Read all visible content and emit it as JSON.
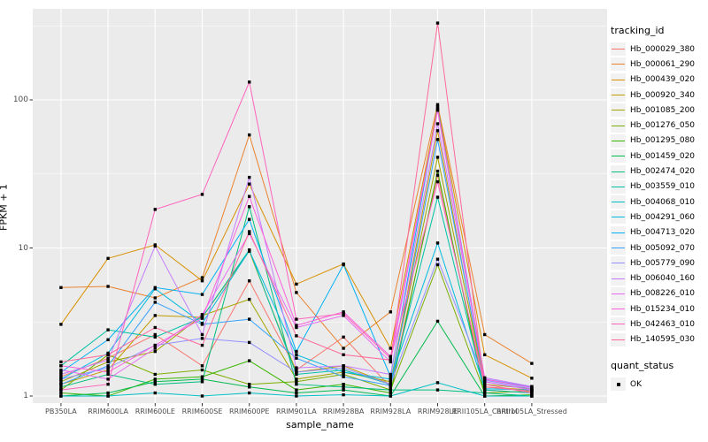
{
  "chart_data": {
    "type": "line",
    "xlabel": "sample_name",
    "ylabel": "FPKM + 1",
    "y_scale": "log10",
    "y_ticks": [
      1,
      10,
      100
    ],
    "y_minor_ticks_log": [
      0.5,
      1.5,
      2.5
    ],
    "grid": true,
    "legend_position": "right",
    "panel_bg": "#EBEBEB",
    "grid_color": "#FFFFFF",
    "tick_label_color": "#4D4D4D",
    "point_color": "#000000",
    "legend_key_bg": "#F2F2F2",
    "categories": [
      "PB350LA",
      "RRIM600LA",
      "RRIM600LE",
      "RRIM600SE",
      "RRIM600PE",
      "RRIM901LA",
      "RRIM928BA",
      "RRIM928LA",
      "RRIM928LE",
      "RRII105LA_Control",
      "RRII105LA_Stressed"
    ],
    "series": [
      {
        "name": "Hb_000029_380",
        "color": "#F8766D",
        "values": [
          1.35,
          1.8,
          2.6,
          1.6,
          6.0,
          1.5,
          2.5,
          1.15,
          31,
          1.1,
          1.05
        ]
      },
      {
        "name": "Hb_000061_290",
        "color": "#EA8331",
        "values": [
          5.4,
          5.5,
          4.6,
          6.3,
          58,
          5.0,
          2.1,
          3.7,
          93,
          2.6,
          1.66
        ]
      },
      {
        "name": "Hb_000439_020",
        "color": "#D89000",
        "values": [
          3.05,
          8.5,
          10.5,
          6.0,
          27,
          5.7,
          7.8,
          2.1,
          90,
          1.9,
          1.32
        ]
      },
      {
        "name": "Hb_000920_340",
        "color": "#C09B00",
        "values": [
          1.2,
          1.5,
          3.5,
          3.4,
          9.5,
          1.45,
          1.6,
          1.2,
          62,
          1.15,
          1.1
        ]
      },
      {
        "name": "Hb_001085_200",
        "color": "#A3A500",
        "values": [
          1.25,
          1.7,
          2.0,
          3.5,
          4.5,
          1.3,
          1.45,
          1.25,
          41,
          1.2,
          1.12
        ]
      },
      {
        "name": "Hb_001276_050",
        "color": "#7CAE00",
        "values": [
          1.1,
          1.9,
          1.4,
          1.5,
          1.2,
          1.25,
          1.4,
          1.1,
          7.7,
          1.05,
          1.08
        ]
      },
      {
        "name": "Hb_001295_080",
        "color": "#39B600",
        "values": [
          1.05,
          1.0,
          1.3,
          1.35,
          1.73,
          1.1,
          1.2,
          1.05,
          33,
          1.0,
          1.02
        ]
      },
      {
        "name": "Hb_001459_020",
        "color": "#00BB4E",
        "values": [
          1.0,
          1.05,
          1.25,
          1.3,
          1.15,
          1.05,
          1.1,
          1.0,
          3.2,
          1.0,
          1.0
        ]
      },
      {
        "name": "Hb_002474_020",
        "color": "#00BF7D",
        "values": [
          1.15,
          1.4,
          1.2,
          1.25,
          19,
          1.2,
          1.15,
          1.1,
          1.1,
          1.05,
          1.0
        ]
      },
      {
        "name": "Hb_003559_010",
        "color": "#00C1A3",
        "values": [
          1.6,
          2.8,
          2.5,
          3.4,
          9.7,
          1.4,
          1.5,
          1.2,
          22,
          1.1,
          1.05
        ]
      },
      {
        "name": "Hb_004068_010",
        "color": "#00BFC4",
        "values": [
          1.0,
          1.0,
          1.05,
          1.0,
          1.05,
          1.0,
          1.02,
          1.0,
          1.23,
          1.0,
          1.0
        ]
      },
      {
        "name": "Hb_004291_060",
        "color": "#00BAE0",
        "values": [
          1.3,
          1.95,
          5.3,
          3.1,
          9.6,
          1.9,
          1.45,
          1.3,
          10.8,
          1.12,
          1.1
        ]
      },
      {
        "name": "Hb_004713_020",
        "color": "#00B0F6",
        "values": [
          1.45,
          2.4,
          5.4,
          4.85,
          15.6,
          2.0,
          7.7,
          1.35,
          88,
          1.3,
          1.15
        ]
      },
      {
        "name": "Hb_005092_070",
        "color": "#35A2FF",
        "values": [
          1.2,
          1.6,
          4.3,
          3.05,
          3.3,
          1.8,
          1.35,
          1.18,
          54,
          1.25,
          1.1
        ]
      },
      {
        "name": "Hb_005779_090",
        "color": "#9590FF",
        "values": [
          1.3,
          1.55,
          2.2,
          2.45,
          2.3,
          1.45,
          1.55,
          1.2,
          8.4,
          1.28,
          1.12
        ]
      },
      {
        "name": "Hb_006040_160",
        "color": "#C77CFF",
        "values": [
          1.4,
          1.75,
          10.3,
          2.6,
          30,
          1.55,
          1.6,
          1.4,
          69,
          1.33,
          1.16
        ]
      },
      {
        "name": "Hb_008226_010",
        "color": "#E76BF3",
        "values": [
          1.5,
          1.3,
          2.1,
          3.55,
          12.5,
          2.9,
          3.5,
          1.7,
          86,
          1.25,
          1.1
        ]
      },
      {
        "name": "Hb_015234_010",
        "color": "#FA62DB",
        "values": [
          1.6,
          1.45,
          2.2,
          3.35,
          22.3,
          3.0,
          3.7,
          1.85,
          85,
          1.3,
          1.14
        ]
      },
      {
        "name": "Hb_042463_010",
        "color": "#FF62BC",
        "values": [
          1.1,
          1.2,
          18.2,
          23,
          132,
          3.3,
          3.6,
          1.8,
          28,
          1.2,
          1.05
        ]
      },
      {
        "name": "Hb_140595_030",
        "color": "#FF6A98",
        "values": [
          1.7,
          1.9,
          2.9,
          2.2,
          12.9,
          2.55,
          1.9,
          1.75,
          330,
          1.15,
          1.08
        ]
      }
    ],
    "legend": {
      "color_title": "tracking_id",
      "shape_title": "quant_status",
      "shape_label": "OK"
    }
  }
}
